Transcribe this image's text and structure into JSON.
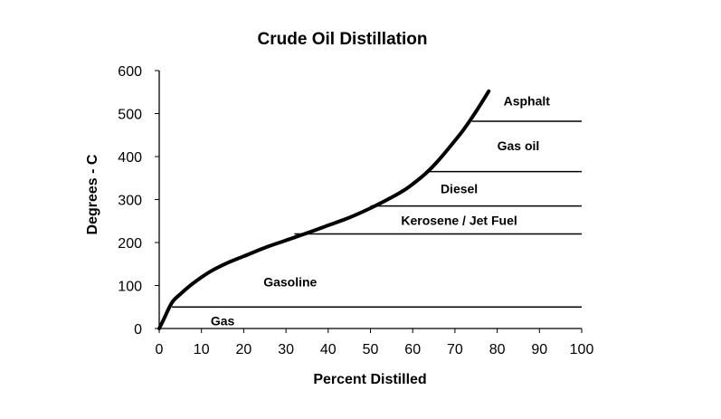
{
  "chart_data": {
    "type": "line",
    "title": "Crude Oil Distillation",
    "xlabel": "Percent Distilled",
    "ylabel": "Degrees - C",
    "xlim": [
      0,
      100
    ],
    "ylim": [
      0,
      600
    ],
    "xticks": [
      "0",
      "10",
      "20",
      "30",
      "40",
      "50",
      "60",
      "70",
      "80",
      "90",
      "100"
    ],
    "yticks": [
      "0",
      "100",
      "200",
      "300",
      "400",
      "500",
      "600"
    ],
    "grid": false,
    "series": [
      {
        "x": [
          0,
          1,
          3,
          5,
          8,
          12,
          16,
          20,
          25,
          30,
          35,
          40,
          45,
          50,
          55,
          58,
          60,
          63,
          66,
          69,
          72,
          75,
          78
        ],
        "values": [
          0,
          20,
          60,
          80,
          105,
          132,
          152,
          168,
          188,
          205,
          222,
          240,
          258,
          280,
          305,
          322,
          336,
          360,
          390,
          425,
          462,
          505,
          552
        ]
      }
    ],
    "bands": [
      {
        "label": "Gas",
        "y": 50,
        "x_start": 3,
        "label_x": 15,
        "label_y": 18
      },
      {
        "label": "Gasoline",
        "y": 220,
        "x_start": 32,
        "label_x": 31,
        "label_y": 108
      },
      {
        "label": "Kerosene / Jet Fuel",
        "y": 285,
        "x_start": 50,
        "label_x": 71,
        "label_y": 252
      },
      {
        "label": "Diesel",
        "y": 365,
        "x_start": 63,
        "label_x": 71,
        "label_y": 325
      },
      {
        "label": "Gas oil",
        "y": 482,
        "x_start": 74,
        "label_x": 85,
        "label_y": 425
      },
      {
        "label": "Asphalt",
        "y": null,
        "x_start": null,
        "label_x": 87,
        "label_y": 530
      }
    ]
  }
}
